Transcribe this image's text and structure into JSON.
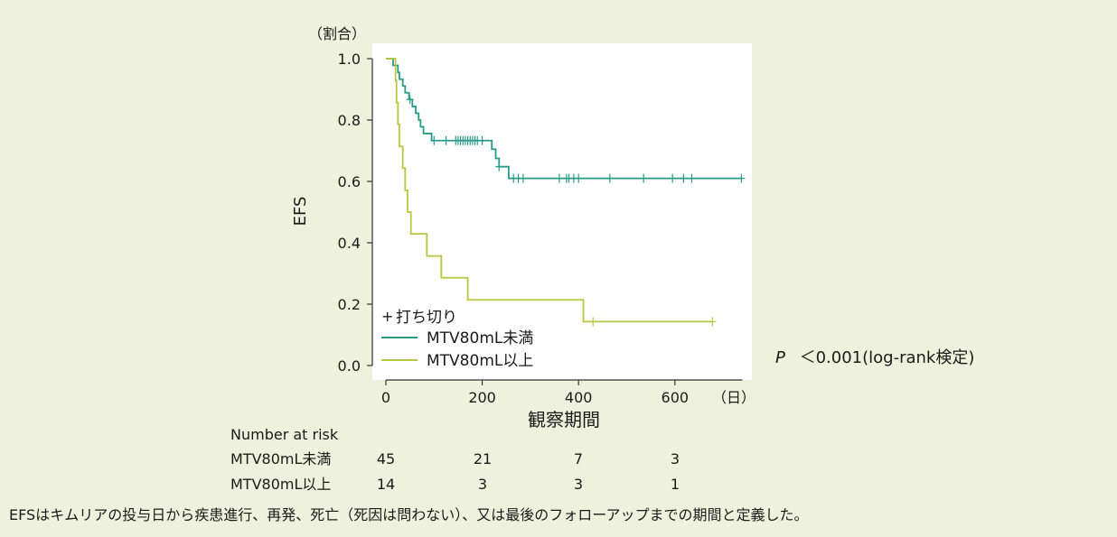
{
  "chart_data": {
    "type": "line",
    "subtype": "kaplan-meier",
    "ylabel": "EFS",
    "yunit": "（割合）",
    "xlabel": "観察期間",
    "xunit": "（日）",
    "xlim": [
      0,
      740
    ],
    "ylim": [
      0,
      1.0
    ],
    "xticks": [
      "0",
      "200",
      "400",
      "600"
    ],
    "yticks": [
      "0.0",
      "0.2",
      "0.4",
      "0.6",
      "0.8",
      "1.0"
    ],
    "grid": false,
    "legend_position": "bottom-left",
    "censor_label": "打ち切り",
    "series": [
      {
        "name": "MTV80mL未満",
        "color": "#2a9a88",
        "steps": [
          [
            0,
            1.0
          ],
          [
            15,
            0.978
          ],
          [
            25,
            0.955
          ],
          [
            28,
            0.933
          ],
          [
            35,
            0.911
          ],
          [
            40,
            0.889
          ],
          [
            48,
            0.867
          ],
          [
            55,
            0.844
          ],
          [
            62,
            0.822
          ],
          [
            68,
            0.8
          ],
          [
            72,
            0.778
          ],
          [
            78,
            0.756
          ],
          [
            95,
            0.733
          ],
          [
            220,
            0.705
          ],
          [
            228,
            0.675
          ],
          [
            235,
            0.648
          ],
          [
            255,
            0.61
          ],
          [
            740,
            0.61
          ]
        ],
        "censored": [
          [
            50,
            0.867
          ],
          [
            100,
            0.733
          ],
          [
            125,
            0.733
          ],
          [
            145,
            0.733
          ],
          [
            150,
            0.733
          ],
          [
            155,
            0.733
          ],
          [
            160,
            0.733
          ],
          [
            165,
            0.733
          ],
          [
            170,
            0.733
          ],
          [
            175,
            0.733
          ],
          [
            180,
            0.733
          ],
          [
            185,
            0.733
          ],
          [
            190,
            0.733
          ],
          [
            200,
            0.733
          ],
          [
            235,
            0.648
          ],
          [
            265,
            0.61
          ],
          [
            275,
            0.61
          ],
          [
            285,
            0.61
          ],
          [
            360,
            0.61
          ],
          [
            375,
            0.61
          ],
          [
            380,
            0.61
          ],
          [
            390,
            0.61
          ],
          [
            400,
            0.61
          ],
          [
            465,
            0.61
          ],
          [
            535,
            0.61
          ],
          [
            595,
            0.61
          ],
          [
            618,
            0.61
          ],
          [
            635,
            0.61
          ],
          [
            738,
            0.61
          ]
        ]
      },
      {
        "name": "MTV80mL以上",
        "color": "#b7c83f",
        "steps": [
          [
            0,
            1.0
          ],
          [
            20,
            0.929
          ],
          [
            22,
            0.857
          ],
          [
            25,
            0.786
          ],
          [
            28,
            0.714
          ],
          [
            35,
            0.643
          ],
          [
            40,
            0.571
          ],
          [
            45,
            0.5
          ],
          [
            52,
            0.429
          ],
          [
            85,
            0.357
          ],
          [
            115,
            0.286
          ],
          [
            170,
            0.214
          ],
          [
            410,
            0.143
          ],
          [
            680,
            0.143
          ]
        ],
        "censored": [
          [
            430,
            0.143
          ],
          [
            678,
            0.143
          ]
        ]
      }
    ],
    "risk_table": {
      "title": "Number at risk",
      "rows": [
        {
          "label": "MTV80mL未満",
          "values": [
            "45",
            "21",
            "7",
            "3"
          ]
        },
        {
          "label": "MTV80mL以上",
          "values": [
            "14",
            "3",
            "3",
            "1"
          ]
        }
      ]
    },
    "annotation": {
      "p": "P",
      "text": "＜0.001(log-rank検定)"
    }
  },
  "footnote": "EFSはキムリアの投与日から疾患進行、再発、死亡（死因は問わない）、又は最後のフォローアップまでの期間と定義した。"
}
